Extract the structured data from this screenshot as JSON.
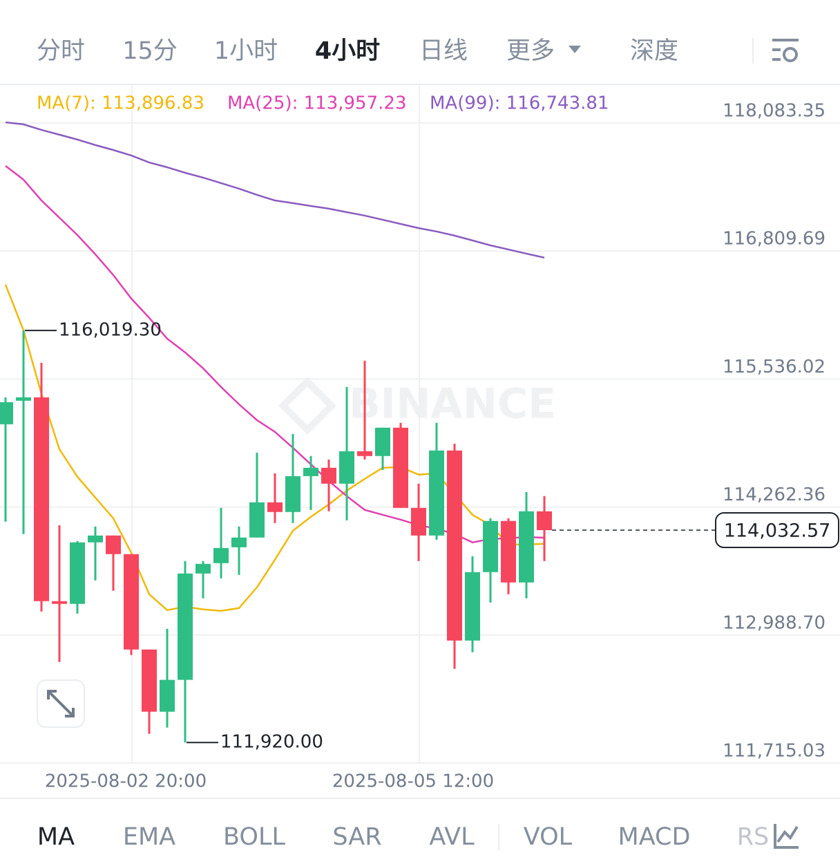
{
  "period_tabs": [
    "分时",
    "15分",
    "1小时",
    "4小时",
    "日线",
    "更多",
    "深度"
  ],
  "active_period_tab": 3,
  "indicator_tabs": [
    "MA",
    "EMA",
    "BOLL",
    "SAR",
    "AVL",
    "VOL",
    "MACD",
    "RS"
  ],
  "active_indicator_tab": 0,
  "chart_data": {
    "type": "candlestick",
    "watermark": "BINANCE",
    "categories": [
      null,
      null,
      null,
      null,
      null,
      null,
      null,
      "2025-08-02 20:00",
      null,
      null,
      null,
      null,
      null,
      null,
      null,
      null,
      null,
      null,
      null,
      null,
      null,
      null,
      null,
      "2025-08-05 12:00",
      null,
      null,
      null,
      null,
      null,
      null,
      null
    ],
    "open": [
      115086,
      115320,
      115354,
      113326,
      113299,
      113911,
      113979,
      113794,
      112845,
      112226,
      112543,
      113601,
      113704,
      113862,
      113959,
      114309,
      114213,
      114570,
      114653,
      114495,
      114818,
      114770,
      115052,
      114254,
      113979,
      114825,
      112934,
      113615,
      114124,
      113512,
      114220
    ],
    "high": [
      115354,
      116019.3,
      115698,
      114082,
      113924,
      114069,
      113979,
      113794,
      112845,
      113051,
      113725,
      113725,
      114254,
      114069,
      114804,
      114598,
      114990,
      114770,
      114735,
      115457,
      115718,
      115052,
      115100,
      114495,
      115100,
      114893,
      113773,
      114151,
      114151,
      114412,
      114371
    ],
    "low": [
      114117,
      113993,
      113223,
      112721,
      113202,
      113532,
      113429,
      112790,
      112006,
      112068,
      111920.0,
      113354,
      113553,
      113587,
      113959,
      114103,
      114103,
      114234,
      114220,
      114130,
      114735,
      114632,
      114254,
      113725,
      113938,
      112653,
      112818,
      113312,
      113395,
      113354,
      113725
    ],
    "close": [
      115306,
      115354,
      113326,
      113299,
      113911,
      113979,
      113794,
      112845,
      112226,
      112543,
      113601,
      113697,
      113855,
      113959,
      114309,
      114213,
      114570,
      114653,
      114495,
      114818,
      114770,
      115052,
      114254,
      113979,
      114825,
      112934,
      113615,
      114124,
      113512,
      114220,
      114032.57
    ],
    "up_color": "#2ebd85",
    "down_color": "#f6465d",
    "series": [
      {
        "name": "MA(7)",
        "legend_label": "MA(7): 113,896.83",
        "color": "#f0b90b",
        "values": [
          116475,
          116021,
          115389,
          114838,
          114564,
          114357,
          114151,
          113807,
          113395,
          113237,
          113271,
          113244,
          113230,
          113257,
          113464,
          113739,
          114027,
          114165,
          114289,
          114426,
          114543,
          114653,
          114660,
          114585,
          114598,
          114392,
          114185,
          114082,
          113890,
          113890,
          113896.83
        ]
      },
      {
        "name": "MA(25)",
        "legend_label": "MA(25): 113,957.23",
        "color": "#e040b0",
        "values": [
          117657,
          117520,
          117313,
          117141,
          116969,
          116777,
          116571,
          116337,
          116145,
          115938,
          115801,
          115643,
          115457,
          115285,
          115127,
          115010,
          114852,
          114687,
          114522,
          114371,
          114234,
          114185,
          114137,
          114082,
          114048,
          113993,
          113911,
          113945,
          113952,
          113965,
          113957.23
        ]
      },
      {
        "name": "MA(99)",
        "legend_label": "MA(99): 116,743.81",
        "color": "#8a5cc0",
        "values": [
          118090,
          118070,
          118015,
          117967,
          117919,
          117864,
          117815,
          117760,
          117691,
          117643,
          117588,
          117540,
          117485,
          117430,
          117368,
          117313,
          117286,
          117258,
          117231,
          117196,
          117162,
          117121,
          117079,
          117038,
          117004,
          116963,
          116915,
          116866,
          116825,
          116784,
          116743.81
        ]
      }
    ],
    "ylim": [
      111715.03,
      118461.4
    ],
    "yticks": [
      {
        "value": 111715.03,
        "label": "111,715.03"
      },
      {
        "value": 112988.7,
        "label": "112,988.70"
      },
      {
        "value": 114262.36,
        "label": "114,262.36"
      },
      {
        "value": 115536.02,
        "label": "115,536.02"
      },
      {
        "value": 116809.69,
        "label": "116,809.69"
      },
      {
        "value": 118083.35,
        "label": "118,083.35"
      }
    ],
    "grid": true,
    "annotations": [
      {
        "value": 116019.3,
        "label": "116,019.30",
        "index": 1
      },
      {
        "value": 111920.0,
        "label": "111,920.00",
        "index": 10
      }
    ],
    "last_price": {
      "value": 114032.57,
      "label": "114,032.57"
    }
  }
}
